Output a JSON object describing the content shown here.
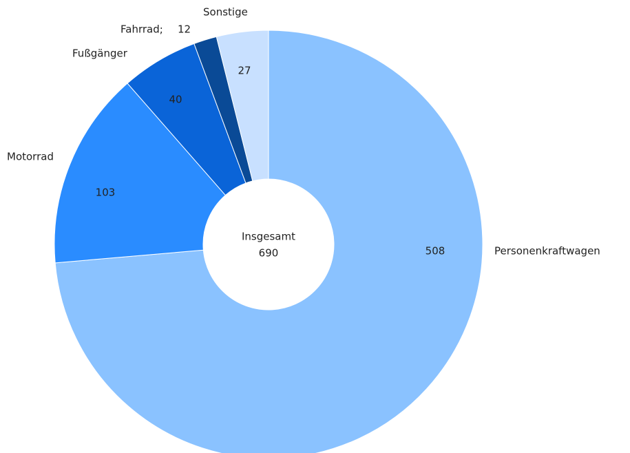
{
  "chart_data": {
    "type": "donut",
    "categories": [
      "Personenkraftwagen",
      "Motorrad",
      "Fußgänger",
      "Fahrrad;",
      "Sonstige"
    ],
    "values": [
      508,
      103,
      40,
      12,
      27
    ],
    "colors": [
      "#8ac2ff",
      "#2a8cff",
      "#0a64d8",
      "#0a4a96",
      "#c8e0ff"
    ],
    "center_label": "Insgesamt",
    "total": 690
  }
}
